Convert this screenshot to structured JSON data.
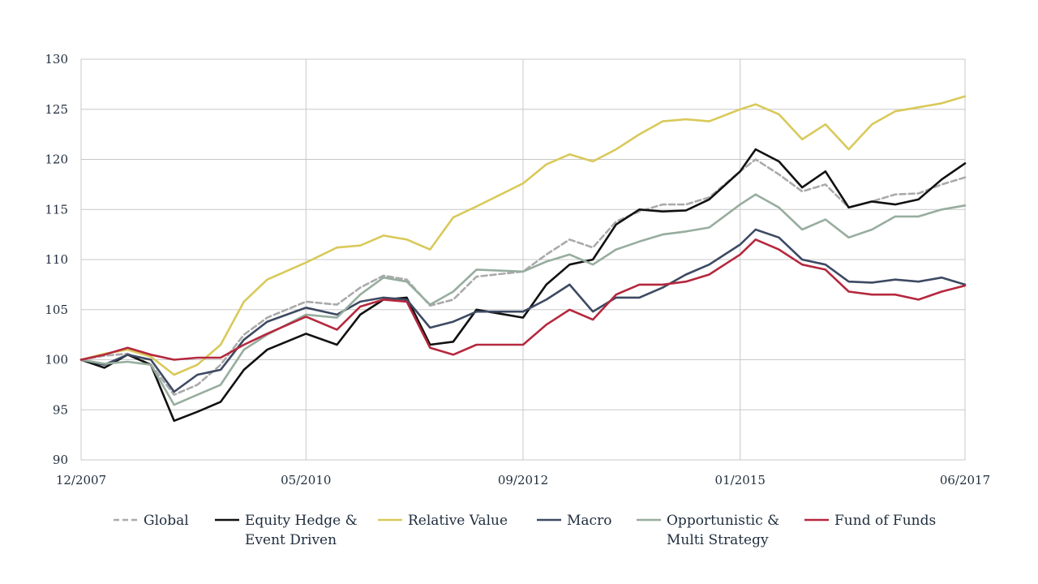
{
  "chart_data": {
    "type": "line",
    "title": "",
    "xlabel": "",
    "ylabel": "",
    "ylim": [
      90,
      130
    ],
    "y_ticks": [
      "90",
      "95",
      "100",
      "105",
      "110",
      "115",
      "120",
      "125",
      "130"
    ],
    "x_ticks": [
      "12/2007",
      "05/2010",
      "09/2012",
      "01/2015",
      "06/2017"
    ],
    "x_range": [
      "12/2007",
      "06/2017"
    ],
    "grid": "vertical and horizontal",
    "legend_position": "bottom",
    "x": [
      "12/2007",
      "03/2008",
      "06/2008",
      "09/2008",
      "12/2008",
      "03/2009",
      "06/2009",
      "09/2009",
      "12/2009",
      "05/2010",
      "09/2010",
      "12/2010",
      "03/2011",
      "06/2011",
      "09/2011",
      "12/2011",
      "03/2012",
      "09/2012",
      "12/2012",
      "03/2013",
      "06/2013",
      "09/2013",
      "12/2013",
      "03/2014",
      "06/2014",
      "09/2014",
      "01/2015",
      "03/2015",
      "06/2015",
      "09/2015",
      "12/2015",
      "03/2016",
      "06/2016",
      "09/2016",
      "12/2016",
      "03/2017",
      "06/2017"
    ],
    "series": [
      {
        "name": "Global",
        "color": "#aaaaaa",
        "dashed": true,
        "values": [
          100,
          100.4,
          100.6,
          99.5,
          96.5,
          97.5,
          99.5,
          102.5,
          104.2,
          105.8,
          105.5,
          107.2,
          108.4,
          108.0,
          105.4,
          106.0,
          108.3,
          108.8,
          110.5,
          112.0,
          111.2,
          113.8,
          114.8,
          115.5,
          115.5,
          116.2,
          118.8,
          120.0,
          118.5,
          116.8,
          117.5,
          115.2,
          115.8,
          116.5,
          116.6,
          117.5,
          118.2
        ]
      },
      {
        "name": "Equity Hedge & Event Driven",
        "color": "#111111",
        "dashed": false,
        "values": [
          100,
          99.2,
          100.5,
          99.5,
          93.9,
          94.8,
          95.8,
          99.0,
          101.0,
          102.6,
          101.5,
          104.5,
          106.0,
          106.2,
          101.5,
          101.8,
          105.0,
          104.2,
          107.5,
          109.5,
          110.0,
          113.5,
          115.0,
          114.8,
          114.9,
          116.0,
          118.8,
          121.0,
          119.8,
          117.2,
          118.8,
          115.2,
          115.8,
          115.5,
          116.0,
          118.0,
          119.6
        ]
      },
      {
        "name": "Relative Value",
        "color": "#d9c95a",
        "dashed": false,
        "values": [
          100,
          100.6,
          101.0,
          100.3,
          98.5,
          99.5,
          101.5,
          105.8,
          108.0,
          109.7,
          111.2,
          111.4,
          112.4,
          112.0,
          111.0,
          114.2,
          115.3,
          117.6,
          119.5,
          120.5,
          119.8,
          121.0,
          122.5,
          123.8,
          124.0,
          123.8,
          125.0,
          125.5,
          124.5,
          122.0,
          123.5,
          121.0,
          123.5,
          124.8,
          125.2,
          125.6,
          126.3
        ]
      },
      {
        "name": "Macro",
        "color": "#3d4a63",
        "dashed": false,
        "values": [
          100,
          99.5,
          100.5,
          100.0,
          96.8,
          98.5,
          99.0,
          102.0,
          103.8,
          105.2,
          104.5,
          105.8,
          106.2,
          106.0,
          103.2,
          103.8,
          104.8,
          104.8,
          106.0,
          107.5,
          104.8,
          106.2,
          106.2,
          107.2,
          108.5,
          109.5,
          111.5,
          113.0,
          112.2,
          110.0,
          109.5,
          107.8,
          107.7,
          108.0,
          107.8,
          108.2,
          107.5
        ]
      },
      {
        "name": "Opportunistic & Multi Strategy",
        "color": "#97ad9e",
        "dashed": false,
        "values": [
          100,
          99.6,
          99.8,
          99.5,
          95.5,
          96.5,
          97.5,
          101.0,
          102.5,
          104.5,
          104.2,
          106.5,
          108.2,
          107.8,
          105.5,
          106.8,
          109.0,
          108.8,
          109.8,
          110.5,
          109.5,
          111.0,
          111.8,
          112.5,
          112.8,
          113.2,
          115.5,
          116.5,
          115.2,
          113.0,
          114.0,
          112.2,
          113.0,
          114.3,
          114.3,
          115.0,
          115.4
        ]
      },
      {
        "name": "Fund of Funds",
        "color": "#b5283e",
        "dashed": false,
        "values": [
          100,
          100.5,
          101.2,
          100.5,
          100.0,
          100.2,
          100.2,
          101.5,
          102.6,
          104.3,
          103.0,
          105.3,
          106.0,
          105.8,
          101.2,
          100.5,
          101.5,
          101.5,
          103.5,
          105.0,
          104.0,
          106.5,
          107.5,
          107.5,
          107.8,
          108.5,
          110.5,
          112.0,
          111.0,
          109.5,
          109.0,
          106.8,
          106.5,
          106.5,
          106.0,
          106.8,
          107.4
        ]
      }
    ]
  }
}
